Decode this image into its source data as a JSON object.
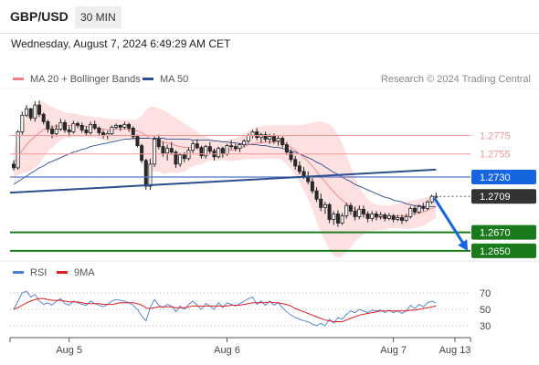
{
  "header": {
    "symbol": "GBP/USD",
    "timeframe": "30 MIN"
  },
  "datetime": "Wednesday, August 7, 2024 6:49:29 AM CET",
  "legend": {
    "ma20_label": "MA 20 + Bollinger Bands",
    "ma50_label": "MA 50",
    "copyright": "Research © 2024 Trading Central"
  },
  "colors": {
    "up_candle": "#ffffff",
    "down_candle": "#2a2a2a",
    "bollinger_fill": "#fde0e0",
    "ma20": "#f08080",
    "ma50": "#2e4f8f",
    "resistance": "#f29999",
    "pivot": "#1565e0",
    "support": "#1b7a1b",
    "current": "#333333",
    "rsi": "#4a7ed8",
    "rsi_ma": "#e02020"
  },
  "chart_data": {
    "type": "candlestick",
    "title": "GBP/USD",
    "timeframe": "30 MIN",
    "x_tick_labels": [
      "Aug 5",
      "Aug 6",
      "Aug 7",
      "Aug 13"
    ],
    "ylim": [
      1.2635,
      1.2823
    ],
    "candles": [
      [
        1.2744,
        1.2748,
        1.2737,
        1.274
      ],
      [
        1.274,
        1.2781,
        1.2738,
        1.2779
      ],
      [
        1.2779,
        1.2801,
        1.2776,
        1.2797
      ],
      [
        1.2797,
        1.2808,
        1.2795,
        1.2804
      ],
      [
        1.2804,
        1.2805,
        1.2791,
        1.2794
      ],
      [
        1.2794,
        1.2812,
        1.279,
        1.2808
      ],
      [
        1.2808,
        1.2813,
        1.2795,
        1.2798
      ],
      [
        1.2798,
        1.28,
        1.2787,
        1.279
      ],
      [
        1.279,
        1.2792,
        1.2778,
        1.2782
      ],
      [
        1.2782,
        1.2786,
        1.2772,
        1.2777
      ],
      [
        1.2777,
        1.2787,
        1.2774,
        1.2782
      ],
      [
        1.2782,
        1.2793,
        1.278,
        1.2789
      ],
      [
        1.2789,
        1.2792,
        1.2778,
        1.2781
      ],
      [
        1.2781,
        1.2785,
        1.2774,
        1.2779
      ],
      [
        1.2779,
        1.2791,
        1.2777,
        1.2788
      ],
      [
        1.2788,
        1.279,
        1.2783,
        1.2786
      ],
      [
        1.2786,
        1.2789,
        1.2778,
        1.2781
      ],
      [
        1.2781,
        1.2785,
        1.2775,
        1.2778
      ],
      [
        1.2778,
        1.279,
        1.2776,
        1.2787
      ],
      [
        1.2787,
        1.2791,
        1.2781,
        1.2783
      ],
      [
        1.2783,
        1.2785,
        1.2775,
        1.2778
      ],
      [
        1.2778,
        1.2781,
        1.2772,
        1.2775
      ],
      [
        1.2775,
        1.278,
        1.2771,
        1.2777
      ],
      [
        1.2777,
        1.2786,
        1.2775,
        1.2784
      ],
      [
        1.2784,
        1.2788,
        1.2782,
        1.2786
      ],
      [
        1.2786,
        1.2787,
        1.278,
        1.2784
      ],
      [
        1.2784,
        1.279,
        1.2782,
        1.2787
      ],
      [
        1.2787,
        1.2789,
        1.2779,
        1.2783
      ],
      [
        1.2783,
        1.2785,
        1.2771,
        1.2774
      ],
      [
        1.2774,
        1.2776,
        1.2762,
        1.2764
      ],
      [
        1.2764,
        1.2766,
        1.2745,
        1.2748
      ],
      [
        1.2748,
        1.275,
        1.2716,
        1.272
      ],
      [
        1.272,
        1.275,
        1.2716,
        1.2744
      ],
      [
        1.2744,
        1.2774,
        1.2741,
        1.2771
      ],
      [
        1.2771,
        1.2776,
        1.276,
        1.2763
      ],
      [
        1.2763,
        1.2768,
        1.2752,
        1.2756
      ],
      [
        1.2756,
        1.2765,
        1.2748,
        1.2761
      ],
      [
        1.2761,
        1.2768,
        1.2754,
        1.2757
      ],
      [
        1.2757,
        1.2759,
        1.274,
        1.2744
      ],
      [
        1.2744,
        1.2756,
        1.2741,
        1.2754
      ],
      [
        1.2754,
        1.2757,
        1.2746,
        1.275
      ],
      [
        1.275,
        1.2762,
        1.2748,
        1.2759
      ],
      [
        1.2759,
        1.2769,
        1.2756,
        1.2766
      ],
      [
        1.2766,
        1.2771,
        1.276,
        1.2762
      ],
      [
        1.2762,
        1.2764,
        1.275,
        1.2753
      ],
      [
        1.2753,
        1.2765,
        1.275,
        1.2763
      ],
      [
        1.2763,
        1.2768,
        1.2755,
        1.2758
      ],
      [
        1.2758,
        1.2761,
        1.2748,
        1.2752
      ],
      [
        1.2752,
        1.2763,
        1.275,
        1.2761
      ],
      [
        1.2761,
        1.2763,
        1.2751,
        1.2755
      ],
      [
        1.2755,
        1.2766,
        1.2753,
        1.2764
      ],
      [
        1.2764,
        1.277,
        1.276,
        1.2763
      ],
      [
        1.2763,
        1.2766,
        1.2758,
        1.2761
      ],
      [
        1.2761,
        1.2767,
        1.2757,
        1.2765
      ],
      [
        1.2765,
        1.2771,
        1.2762,
        1.2769
      ],
      [
        1.2769,
        1.2777,
        1.2766,
        1.2775
      ],
      [
        1.2775,
        1.2781,
        1.2772,
        1.2779
      ],
      [
        1.2779,
        1.2783,
        1.277,
        1.2773
      ],
      [
        1.2773,
        1.2778,
        1.2767,
        1.2776
      ],
      [
        1.2776,
        1.2779,
        1.2768,
        1.2771
      ],
      [
        1.2771,
        1.2777,
        1.2766,
        1.2774
      ],
      [
        1.2774,
        1.2777,
        1.2766,
        1.2769
      ],
      [
        1.2769,
        1.2775,
        1.2764,
        1.2772
      ],
      [
        1.2772,
        1.2774,
        1.2762,
        1.2765
      ],
      [
        1.2765,
        1.2768,
        1.2754,
        1.2757
      ],
      [
        1.2757,
        1.276,
        1.2746,
        1.2749
      ],
      [
        1.2749,
        1.2753,
        1.2738,
        1.2742
      ],
      [
        1.2742,
        1.2747,
        1.2733,
        1.2736
      ],
      [
        1.2736,
        1.2741,
        1.2728,
        1.2731
      ],
      [
        1.2731,
        1.2736,
        1.2722,
        1.2725
      ],
      [
        1.2725,
        1.2729,
        1.2712,
        1.2715
      ],
      [
        1.2715,
        1.2719,
        1.2703,
        1.2706
      ],
      [
        1.2706,
        1.2712,
        1.2693,
        1.2697
      ],
      [
        1.2697,
        1.2703,
        1.269,
        1.27
      ],
      [
        1.27,
        1.2702,
        1.268,
        1.2684
      ],
      [
        1.2684,
        1.2693,
        1.2678,
        1.269
      ],
      [
        1.269,
        1.2694,
        1.2676,
        1.268
      ],
      [
        1.268,
        1.2691,
        1.2678,
        1.2688
      ],
      [
        1.2688,
        1.2702,
        1.2685,
        1.2699
      ],
      [
        1.2699,
        1.2702,
        1.2689,
        1.2693
      ],
      [
        1.2693,
        1.2698,
        1.2683,
        1.2687
      ],
      [
        1.2687,
        1.2699,
        1.2684,
        1.2695
      ],
      [
        1.2695,
        1.2699,
        1.2686,
        1.269
      ],
      [
        1.269,
        1.2693,
        1.2681,
        1.2685
      ],
      [
        1.2685,
        1.2693,
        1.2682,
        1.269
      ],
      [
        1.269,
        1.2693,
        1.2683,
        1.2687
      ],
      [
        1.2687,
        1.2692,
        1.2684,
        1.2689
      ],
      [
        1.2689,
        1.2691,
        1.2682,
        1.2685
      ],
      [
        1.2685,
        1.2691,
        1.2683,
        1.2688
      ],
      [
        1.2688,
        1.269,
        1.2681,
        1.2684
      ],
      [
        1.2684,
        1.2689,
        1.2682,
        1.2686
      ],
      [
        1.2686,
        1.2689,
        1.2679,
        1.2683
      ],
      [
        1.2683,
        1.269,
        1.2681,
        1.2687
      ],
      [
        1.2687,
        1.2698,
        1.2685,
        1.2696
      ],
      [
        1.2696,
        1.2699,
        1.2689,
        1.2692
      ],
      [
        1.2692,
        1.27,
        1.269,
        1.2698
      ],
      [
        1.2698,
        1.2702,
        1.2693,
        1.2696
      ],
      [
        1.2696,
        1.2705,
        1.2694,
        1.2703
      ],
      [
        1.2703,
        1.2711,
        1.2701,
        1.2709
      ],
      [
        1.2709,
        1.2713,
        1.2705,
        1.2709
      ]
    ],
    "ma20": [
      1.2745,
      1.2752,
      1.2759,
      1.2765,
      1.277,
      1.2774,
      1.2778,
      1.2781,
      1.2783,
      1.2784,
      1.2785,
      1.2786,
      1.2786,
      1.2786,
      1.2786,
      1.2786,
      1.2785,
      1.2785,
      1.2784,
      1.2784,
      1.2783,
      1.2782,
      1.2781,
      1.2781,
      1.2782,
      1.2782,
      1.2782,
      1.2782,
      1.2781,
      1.278,
      1.2778,
      1.2775,
      1.2772,
      1.2771,
      1.277,
      1.2768,
      1.2767,
      1.2766,
      1.2764,
      1.2763,
      1.2762,
      1.2762,
      1.2762,
      1.2761,
      1.276,
      1.276,
      1.276,
      1.2759,
      1.2759,
      1.2759,
      1.2759,
      1.2759,
      1.276,
      1.2761,
      1.2763,
      1.2765,
      1.2766,
      1.2767,
      1.2767,
      1.2768,
      1.2768,
      1.2768,
      1.2768,
      1.2767,
      1.2765,
      1.2762,
      1.2759,
      1.2755,
      1.2751,
      1.2747,
      1.2742,
      1.2736,
      1.273,
      1.2725,
      1.2719,
      1.2714,
      1.2709,
      1.2705,
      1.2701,
      1.2698,
      1.2695,
      1.2692,
      1.269,
      1.2688,
      1.2687,
      1.2686,
      1.2686,
      1.2686,
      1.2687,
      1.2687,
      1.2688,
      1.2688,
      1.2688,
      1.2689,
      1.269,
      1.2691,
      1.2692,
      1.2694,
      1.2696,
      1.2698
    ],
    "bollinger_upper": [
      1.276,
      1.2772,
      1.2784,
      1.2795,
      1.2803,
      1.2808,
      1.2811,
      1.2811,
      1.2808,
      1.2806,
      1.2804,
      1.2802,
      1.28,
      1.2799,
      1.2799,
      1.2798,
      1.2797,
      1.2796,
      1.2796,
      1.2795,
      1.2795,
      1.2794,
      1.2793,
      1.2793,
      1.2793,
      1.2793,
      1.2792,
      1.2792,
      1.2792,
      1.2793,
      1.2796,
      1.2803,
      1.2807,
      1.2806,
      1.2804,
      1.2803,
      1.28,
      1.2797,
      1.2794,
      1.2791,
      1.2788,
      1.2785,
      1.2782,
      1.2779,
      1.2776,
      1.2774,
      1.2772,
      1.2771,
      1.277,
      1.277,
      1.277,
      1.2771,
      1.2772,
      1.2774,
      1.2777,
      1.278,
      1.2783,
      1.2784,
      1.2785,
      1.2786,
      1.2786,
      1.2786,
      1.2786,
      1.2786,
      1.2786,
      1.2786,
      1.2786,
      1.2786,
      1.2787,
      1.2788,
      1.2789,
      1.279,
      1.279,
      1.2789,
      1.2787,
      1.2783,
      1.2776,
      1.2766,
      1.2754,
      1.2742,
      1.273,
      1.272,
      1.2712,
      1.2706,
      1.2702,
      1.27,
      1.2699,
      1.2699,
      1.2699,
      1.27,
      1.2701,
      1.2702,
      1.2703,
      1.2704,
      1.2705,
      1.2706,
      1.2707,
      1.2708,
      1.2709,
      1.2711
    ],
    "bollinger_lower": [
      1.273,
      1.2732,
      1.2734,
      1.2735,
      1.2737,
      1.274,
      1.2745,
      1.2751,
      1.2758,
      1.2762,
      1.2766,
      1.277,
      1.2772,
      1.2773,
      1.2773,
      1.2774,
      1.2773,
      1.2774,
      1.2772,
      1.2773,
      1.2771,
      1.277,
      1.2769,
      1.2769,
      1.2771,
      1.2771,
      1.2772,
      1.2772,
      1.277,
      1.2767,
      1.276,
      1.2747,
      1.2737,
      1.2736,
      1.2736,
      1.2733,
      1.2734,
      1.2735,
      1.2734,
      1.2735,
      1.2736,
      1.2739,
      1.2742,
      1.2743,
      1.2744,
      1.2746,
      1.2748,
      1.2747,
      1.2748,
      1.2748,
      1.2748,
      1.2747,
      1.2748,
      1.2748,
      1.2749,
      1.275,
      1.2749,
      1.275,
      1.2749,
      1.275,
      1.275,
      1.275,
      1.275,
      1.2748,
      1.2744,
      1.2738,
      1.2732,
      1.2724,
      1.2715,
      1.2706,
      1.2695,
      1.2682,
      1.267,
      1.2661,
      1.2651,
      1.2645,
      1.2642,
      1.2644,
      1.2648,
      1.2654,
      1.266,
      1.2664,
      1.2668,
      1.267,
      1.2672,
      1.2672,
      1.2673,
      1.2673,
      1.2675,
      1.2674,
      1.2675,
      1.2674,
      1.2673,
      1.2674,
      1.2675,
      1.2676,
      1.2677,
      1.268,
      1.2683,
      1.2685
    ],
    "ma50": [
      1.2722,
      1.2725,
      1.2728,
      1.2731,
      1.2734,
      1.2737,
      1.274,
      1.2742,
      1.2745,
      1.2747,
      1.2749,
      1.2751,
      1.2753,
      1.2755,
      1.2757,
      1.2758,
      1.276,
      1.2761,
      1.2763,
      1.2764,
      1.2765,
      1.2766,
      1.2767,
      1.2768,
      1.2769,
      1.277,
      1.2771,
      1.2771,
      1.2772,
      1.2772,
      1.2772,
      1.2772,
      1.2772,
      1.2772,
      1.2772,
      1.2772,
      1.2771,
      1.2771,
      1.2771,
      1.2771,
      1.2771,
      1.2771,
      1.277,
      1.277,
      1.277,
      1.277,
      1.277,
      1.2769,
      1.2769,
      1.2768,
      1.2768,
      1.2767,
      1.2767,
      1.2766,
      1.2766,
      1.2765,
      1.2765,
      1.2765,
      1.2764,
      1.2764,
      1.2763,
      1.2762,
      1.2762,
      1.2761,
      1.276,
      1.2758,
      1.2757,
      1.2755,
      1.2753,
      1.2751,
      1.2749,
      1.2746,
      1.2744,
      1.2741,
      1.2738,
      1.2735,
      1.2733,
      1.273,
      1.2727,
      1.2725,
      1.2722,
      1.272,
      1.2718,
      1.2716,
      1.2714,
      1.2712,
      1.271,
      1.2708,
      1.2707,
      1.2705,
      1.2704,
      1.2703,
      1.2701,
      1.27,
      1.2699,
      1.2699,
      1.2698,
      1.2698,
      1.2698,
      1.2698
    ],
    "trendline": [
      [
        0,
        1.2713
      ],
      [
        99,
        1.2738
      ]
    ],
    "forecast_arrow": [
      [
        98,
        1.2709
      ],
      [
        106,
        1.265
      ]
    ],
    "levels": [
      {
        "value": 1.2775,
        "label": "1.2775",
        "kind": "resistance"
      },
      {
        "value": 1.2755,
        "label": "1.2755",
        "kind": "resistance"
      },
      {
        "value": 1.273,
        "label": "1.2730",
        "kind": "pivot"
      },
      {
        "value": 1.2709,
        "label": "1.2709",
        "kind": "current"
      },
      {
        "value": 1.267,
        "label": "1.2670",
        "kind": "support"
      },
      {
        "value": 1.265,
        "label": "1.2650",
        "kind": "support"
      }
    ],
    "rsi": {
      "legend": [
        "RSI",
        "9MA"
      ],
      "ylim": [
        20,
        80
      ],
      "ticks": [
        "70",
        "50",
        "30"
      ],
      "rsi_values": [
        50,
        60,
        70,
        72,
        65,
        68,
        60,
        56,
        58,
        55,
        60,
        63,
        57,
        55,
        60,
        58,
        56,
        55,
        60,
        57,
        55,
        53,
        56,
        60,
        62,
        61,
        60,
        58,
        55,
        50,
        42,
        36,
        52,
        62,
        55,
        52,
        56,
        54,
        47,
        54,
        50,
        56,
        60,
        55,
        50,
        57,
        54,
        50,
        58,
        52,
        58,
        56,
        54,
        57,
        60,
        63,
        65,
        56,
        60,
        55,
        60,
        55,
        58,
        52,
        47,
        43,
        40,
        38,
        36,
        35,
        32,
        30,
        33,
        30,
        38,
        33,
        40,
        38,
        44,
        48,
        46,
        50,
        48,
        46,
        49,
        48,
        49,
        46,
        49,
        46,
        48,
        45,
        48,
        55,
        51,
        56,
        53,
        58,
        60,
        58
      ],
      "ma_values": [
        50,
        52,
        55,
        58,
        60,
        62,
        63,
        63,
        62,
        61,
        61,
        61,
        60,
        59,
        59,
        59,
        58,
        57,
        57,
        57,
        57,
        56,
        56,
        56,
        57,
        58,
        58,
        58,
        58,
        57,
        55,
        52,
        51,
        52,
        53,
        53,
        53,
        53,
        52,
        52,
        52,
        53,
        54,
        54,
        54,
        54,
        54,
        54,
        54,
        54,
        54,
        55,
        55,
        55,
        56,
        57,
        58,
        58,
        58,
        58,
        59,
        58,
        58,
        57,
        56,
        54,
        51,
        49,
        47,
        45,
        43,
        41,
        39,
        37,
        36,
        35,
        35,
        35,
        37,
        39,
        41,
        43,
        44,
        45,
        46,
        47,
        48,
        48,
        48,
        48,
        48,
        48,
        48,
        49,
        49,
        50,
        51,
        52,
        53,
        54
      ]
    }
  }
}
